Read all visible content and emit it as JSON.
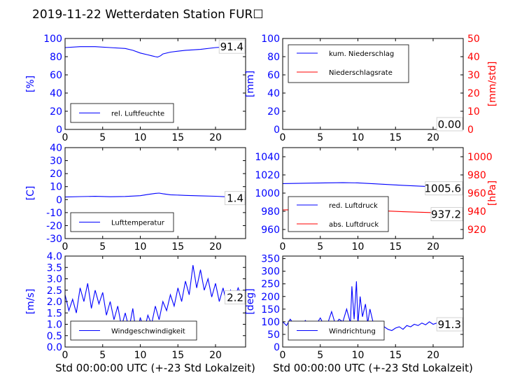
{
  "title": "2019-11-22 Wetterdaten Station FUR☐",
  "colors": {
    "primary": "#0000ff",
    "secondary": "#ff0000",
    "axis": "#000000"
  },
  "chart_data": [
    {
      "id": "p1",
      "type": "line",
      "xlim": [
        0,
        24
      ],
      "ylim": [
        0,
        100
      ],
      "xticks": [
        0,
        5,
        10,
        15,
        20
      ],
      "yticks": [
        0,
        20,
        40,
        60,
        80,
        100
      ],
      "ylabel": "[%]",
      "last_value": "91.4",
      "legend": {
        "placement": "lower-left",
        "entries": [
          "rel. Luftfeuchte"
        ]
      },
      "series": [
        {
          "name": "rel. Luftfeuchte",
          "color": "#0000ff",
          "x": [
            0,
            2,
            4,
            6,
            8,
            9,
            10,
            11,
            11.5,
            12,
            12.3,
            12.7,
            13,
            14,
            16,
            18,
            20,
            22,
            24
          ],
          "y": [
            90,
            91,
            91,
            90,
            89,
            87,
            84,
            82,
            81,
            80,
            79.5,
            81,
            83,
            85,
            87,
            88,
            90,
            91,
            91.4
          ]
        }
      ]
    },
    {
      "id": "p2",
      "type": "line",
      "xlim": [
        0,
        24
      ],
      "ylim": [
        0,
        100
      ],
      "y2lim": [
        0,
        50
      ],
      "xticks": [
        0,
        5,
        10,
        15,
        20
      ],
      "yticks": [
        0,
        20,
        40,
        60,
        80,
        100
      ],
      "y2ticks": [
        0,
        10,
        20,
        30,
        40,
        50
      ],
      "ylabel": "[mm]",
      "y2label": "[mm/std]",
      "last_value": "0.00",
      "legend": {
        "placement": "upper-left",
        "entries": [
          "kum. Niederschlag",
          "Niederschlagsrate"
        ]
      },
      "series": [
        {
          "name": "kum. Niederschlag",
          "color": "#0000ff",
          "x": [
            0,
            24
          ],
          "y": [
            0,
            0
          ]
        },
        {
          "name": "Niederschlagsrate",
          "color": "#ff0000",
          "axis": "right",
          "x": [
            0,
            24
          ],
          "y": [
            0,
            0
          ]
        }
      ]
    },
    {
      "id": "p3",
      "type": "line",
      "xlim": [
        0,
        24
      ],
      "ylim": [
        -30,
        40
      ],
      "xticks": [
        0,
        5,
        10,
        15,
        20
      ],
      "yticks": [
        -30,
        -20,
        -10,
        0,
        10,
        20,
        30,
        40
      ],
      "ylabel": "[C]",
      "last_value": "1.4",
      "legend": {
        "placement": "lower-left",
        "entries": [
          "Lufttemperatur"
        ]
      },
      "series": [
        {
          "name": "Lufttemperatur",
          "color": "#0000ff",
          "x": [
            0,
            2,
            4,
            6,
            8,
            10,
            11,
            12,
            12.5,
            13,
            14,
            16,
            18,
            20,
            22,
            24
          ],
          "y": [
            2.0,
            2.3,
            2.5,
            2.2,
            2.4,
            3.0,
            4.0,
            4.8,
            5.0,
            4.5,
            3.7,
            3.2,
            2.9,
            2.6,
            2.0,
            1.4
          ]
        }
      ]
    },
    {
      "id": "p4",
      "type": "line",
      "xlim": [
        0,
        24
      ],
      "ylim": [
        950,
        1050
      ],
      "y2lim": [
        910,
        1010
      ],
      "xticks": [
        0,
        5,
        10,
        15,
        20
      ],
      "yticks": [
        960,
        980,
        1000,
        1020,
        1040
      ],
      "y2ticks": [
        920,
        940,
        960,
        980,
        1000
      ],
      "y2label": "[hPa]",
      "last_value": "1005.6",
      "last_value_2": "937.2",
      "legend": {
        "placement": "lower-left",
        "entries": [
          "red. Luftdruck",
          "abs. Luftdruck"
        ]
      },
      "series": [
        {
          "name": "red. Luftdruck",
          "color": "#0000ff",
          "x": [
            0,
            4,
            8,
            10,
            12,
            16,
            20,
            24
          ],
          "y": [
            1010.5,
            1011,
            1011.5,
            1011.2,
            1010.3,
            1008.5,
            1007,
            1005.6
          ]
        },
        {
          "name": "abs. Luftdruck",
          "color": "#ff0000",
          "axis": "right",
          "x": [
            0,
            4,
            8,
            10,
            12,
            16,
            20,
            24
          ],
          "y": [
            941.5,
            942,
            942.2,
            941.8,
            941,
            939.5,
            938.5,
            937.2
          ]
        }
      ]
    },
    {
      "id": "p5",
      "type": "line",
      "xlim": [
        0,
        24
      ],
      "ylim": [
        0,
        4
      ],
      "xticks": [
        0,
        5,
        10,
        15,
        20
      ],
      "yticks": [
        0.0,
        0.5,
        1.0,
        1.5,
        2.0,
        2.5,
        3.0,
        3.5,
        4.0
      ],
      "ylabel": "[m/s]",
      "xlabel": "Std 00:00:00 UTC (+-23 Std Lokalzeit)",
      "last_value": "2.2",
      "legend": {
        "placement": "lower-left",
        "entries": [
          "Windgeschwindigkeit"
        ]
      },
      "series": [
        {
          "name": "Windgeschwindigkeit",
          "color": "#0000ff",
          "x": [
            0,
            0.5,
            1,
            1.5,
            2,
            2.5,
            3,
            3.5,
            4,
            4.5,
            5,
            5.5,
            6,
            6.5,
            7,
            7.5,
            8,
            8.5,
            9,
            9.5,
            10,
            10.5,
            11,
            11.5,
            12,
            12.5,
            13,
            13.5,
            14,
            14.5,
            15,
            15.5,
            16,
            16.5,
            17,
            17.5,
            18,
            18.5,
            19,
            19.5,
            20,
            20.5,
            21,
            21.5,
            22,
            22.5,
            23,
            23.5,
            24
          ],
          "y": [
            2.3,
            1.6,
            2.1,
            1.5,
            2.6,
            2.0,
            2.8,
            1.7,
            2.5,
            1.9,
            2.4,
            1.4,
            2.0,
            1.2,
            1.8,
            0.9,
            1.5,
            0.8,
            1.7,
            0.5,
            1.3,
            0.7,
            1.4,
            1.0,
            1.8,
            1.2,
            2.0,
            1.6,
            2.3,
            1.8,
            2.6,
            2.0,
            2.9,
            2.3,
            3.6,
            2.6,
            3.4,
            2.5,
            3.0,
            2.2,
            2.8,
            2.0,
            2.6,
            1.9,
            2.5,
            2.1,
            2.6,
            2.2,
            2.2
          ]
        }
      ]
    },
    {
      "id": "p6",
      "type": "line",
      "xlim": [
        0,
        24
      ],
      "ylim": [
        0,
        360
      ],
      "xticks": [
        0,
        5,
        10,
        15,
        20
      ],
      "yticks": [
        0,
        50,
        100,
        150,
        200,
        250,
        300,
        350
      ],
      "ylabel": "[deg]",
      "xlabel": "Std 00:00:00 UTC (+-23 Std Lokalzeit)",
      "last_value": "91.3",
      "legend": {
        "placement": "lower-left",
        "entries": [
          "Windrichtung"
        ]
      },
      "series": [
        {
          "name": "Windrichtung",
          "color": "#0000ff",
          "x": [
            0,
            0.5,
            1,
            1.5,
            2,
            2.5,
            3,
            3.5,
            4,
            4.5,
            5,
            5.5,
            6,
            6.5,
            7,
            7.5,
            8,
            8.5,
            9,
            9.2,
            9.5,
            9.8,
            10,
            10.3,
            10.6,
            11,
            11.3,
            11.6,
            12,
            12.5,
            13,
            13.5,
            14,
            14.5,
            15,
            15.5,
            16,
            16.5,
            17,
            17.5,
            18,
            18.5,
            19,
            19.5,
            20,
            20.5,
            21,
            21.5,
            22,
            22.5,
            23,
            23.5,
            24
          ],
          "y": [
            100,
            85,
            110,
            90,
            95,
            80,
            105,
            88,
            100,
            92,
            115,
            85,
            95,
            140,
            90,
            110,
            100,
            150,
            95,
            240,
            110,
            260,
            90,
            200,
            120,
            170,
            95,
            150,
            100,
            90,
            95,
            80,
            70,
            65,
            75,
            80,
            70,
            85,
            80,
            90,
            85,
            95,
            88,
            100,
            90,
            95,
            100,
            92,
            90,
            98,
            95,
            93,
            91.3
          ]
        }
      ]
    }
  ]
}
